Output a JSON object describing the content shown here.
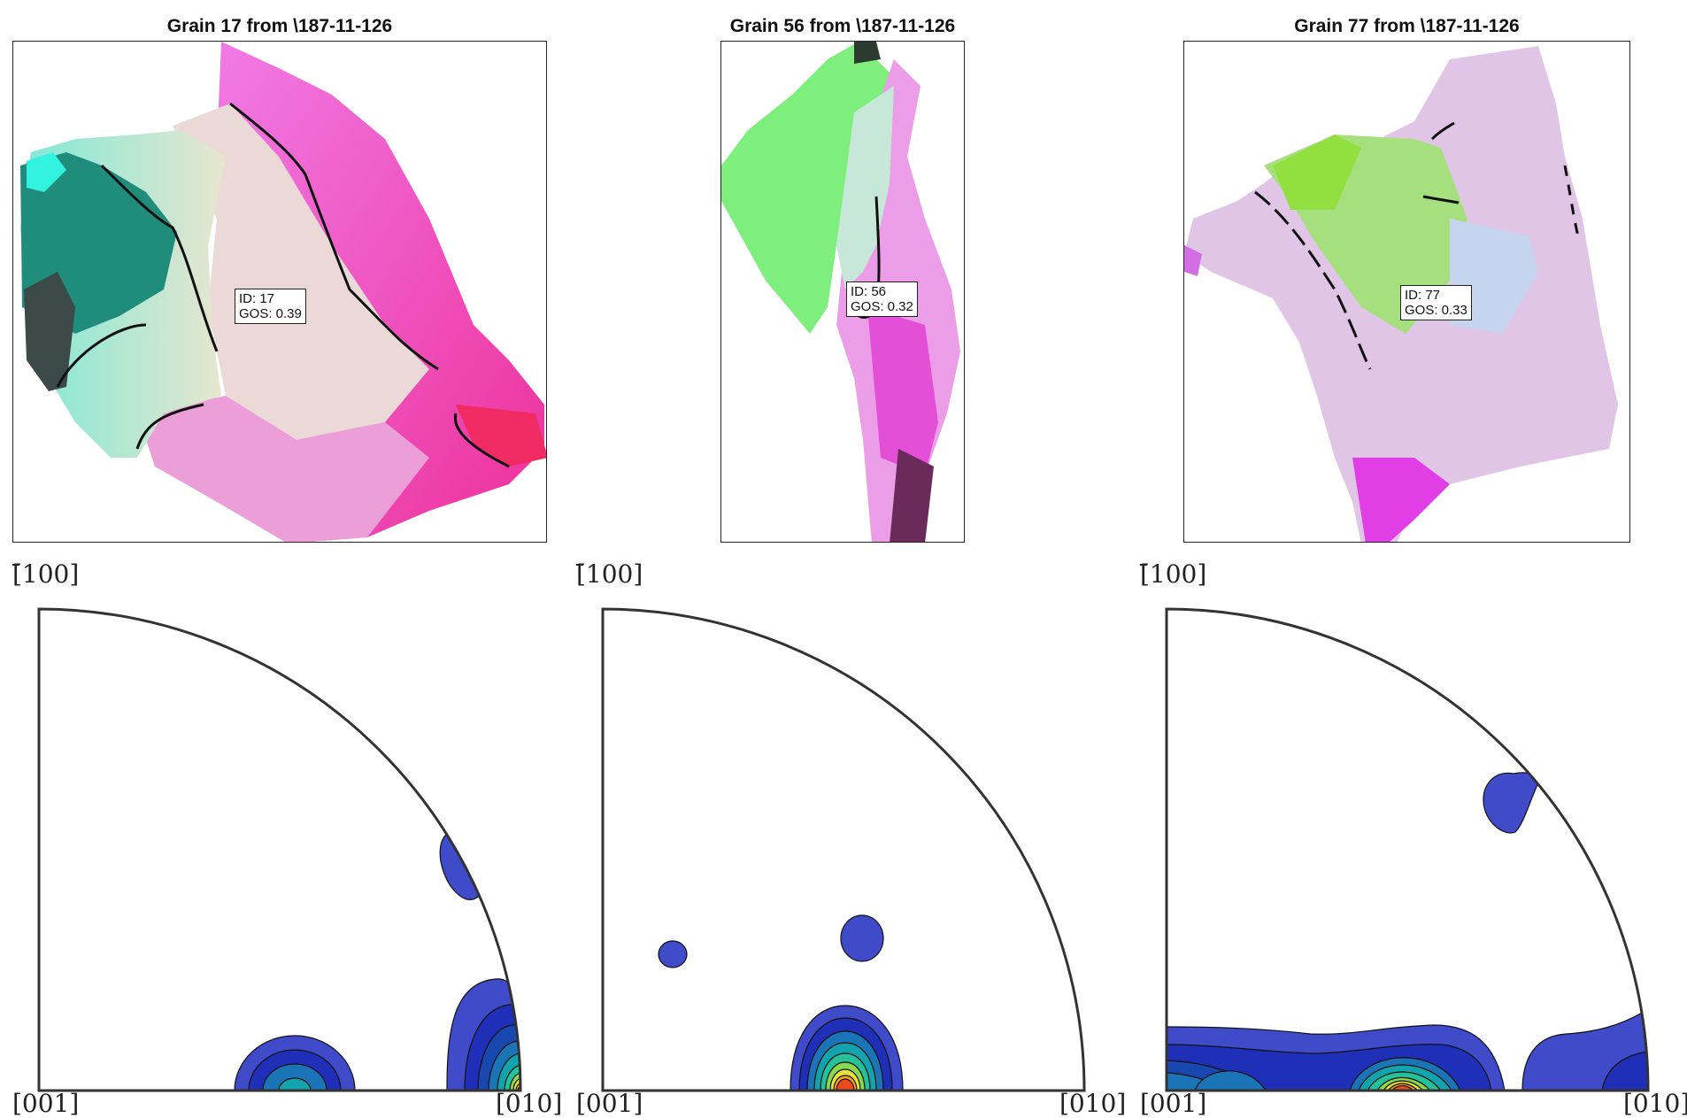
{
  "grains": [
    {
      "title": "Grain 17 from \\187-11-126",
      "id_line": "ID: 17",
      "gos_line": "GOS: 0.39"
    },
    {
      "title": "Grain 56 from \\187-11-126",
      "id_line": "ID: 56",
      "gos_line": "GOS: 0.32"
    },
    {
      "title": "Grain 77 from \\187-11-126",
      "id_line": "ID: 77",
      "gos_line": "GOS: 0.33"
    }
  ],
  "pole_figures": [
    {
      "top_label": "[̄100]",
      "left_label": "[001]",
      "right_label": "[010]"
    },
    {
      "top_label": "[̄100]",
      "left_label": "[001]",
      "right_label": "[010]"
    },
    {
      "top_label": "[̄100]",
      "left_label": "[001]",
      "right_label": "[010]"
    }
  ],
  "colors": {
    "contour_scale": [
      "#3f4bc9",
      "#1f2fb8",
      "#1947b0",
      "#1a74b6",
      "#12a3ad",
      "#24c19a",
      "#8bd74f",
      "#e6e23c",
      "#f5a623",
      "#ef4a1e"
    ],
    "boundary": "#111111"
  }
}
